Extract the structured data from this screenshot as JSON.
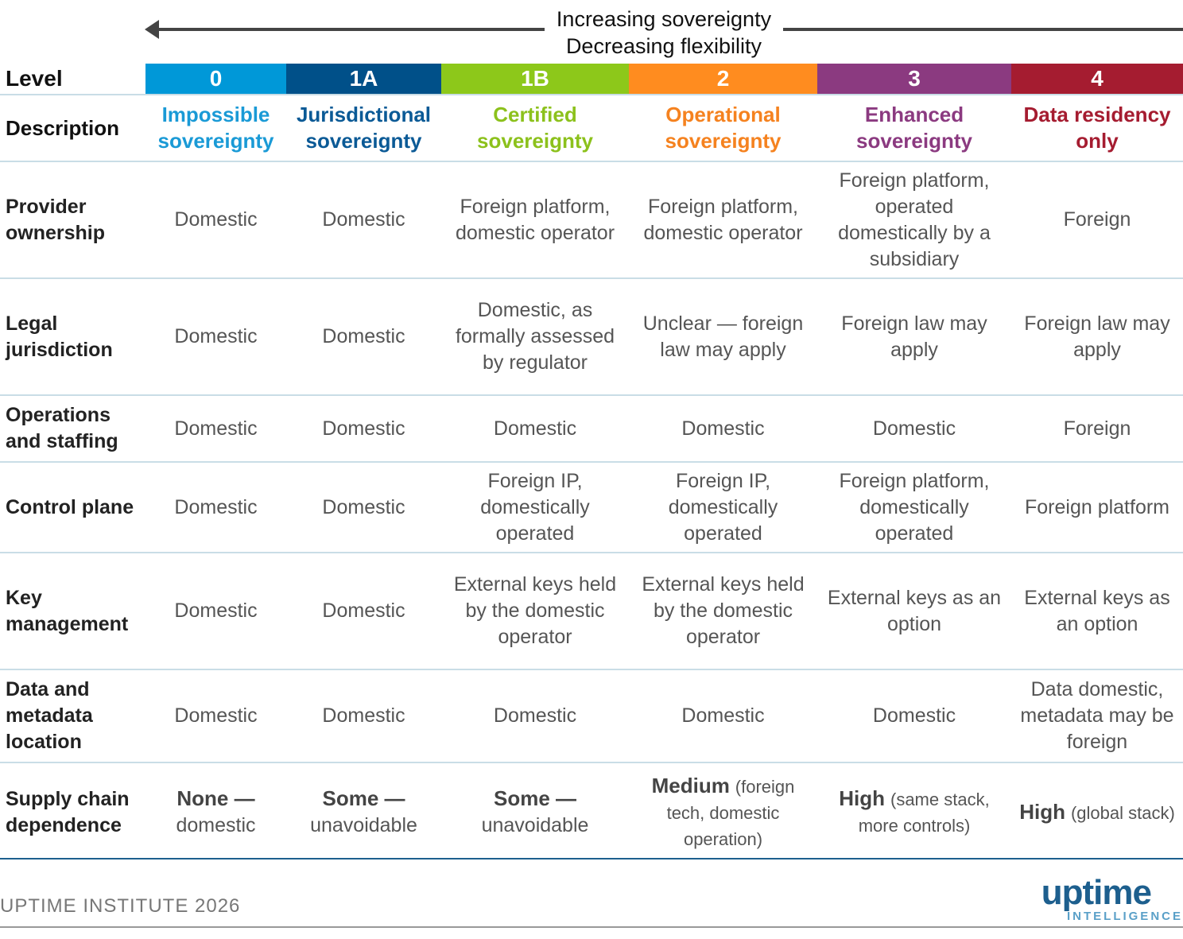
{
  "header": {
    "line1": "Increasing sovereignty",
    "line2": "Decreasing flexibility"
  },
  "table": {
    "level_label": "Level",
    "description_label": "Description",
    "levels": [
      {
        "level": "0",
        "description": "Impossible sovereignty",
        "color": "#0098d8",
        "text_color": "#1a9ad6"
      },
      {
        "level": "1A",
        "description": "Jurisdictional sovereignty",
        "color": "#005089",
        "text_color": "#0b5a96"
      },
      {
        "level": "1B",
        "description": "Certified sovereignty",
        "color": "#8dc81a",
        "text_color": "#8cc11c"
      },
      {
        "level": "2",
        "description": "Operational sovereignty",
        "color": "#ff8c1f",
        "text_color": "#f5821f"
      },
      {
        "level": "3",
        "description": "Enhanced sovereignty",
        "color": "#8b3a80",
        "text_color": "#8b3a80"
      },
      {
        "level": "4",
        "description": "Data residency only",
        "color": "#a51c30",
        "text_color": "#a51c30"
      }
    ],
    "rows": [
      {
        "label": "Provider ownership",
        "cells": [
          "Domestic",
          "Domestic",
          "Foreign platform, domestic operator",
          "Foreign platform, domestic operator",
          "Foreign platform, operated domestically by a subsidiary",
          "Foreign"
        ]
      },
      {
        "label": "Legal jurisdiction",
        "cells": [
          "Domestic",
          "Domestic",
          "Domestic, as formally assessed by regulator",
          "Unclear — foreign law may apply",
          "Foreign law may apply",
          "Foreign law may apply"
        ]
      },
      {
        "label": "Operations and staffing",
        "cells": [
          "Domestic",
          "Domestic",
          "Domestic",
          "Domestic",
          "Domestic",
          "Foreign"
        ]
      },
      {
        "label": "Control plane",
        "cells": [
          "Domestic",
          "Domestic",
          "Foreign IP, domestically operated",
          "Foreign IP, domestically operated",
          "Foreign platform, domestically operated",
          "Foreign platform"
        ]
      },
      {
        "label": "Key management",
        "cells": [
          "Domestic",
          "Domestic",
          "External keys held by the domestic operator",
          "External keys held by the domestic operator",
          "External keys as an option",
          "External keys as an option"
        ]
      },
      {
        "label": "Data and metadata location",
        "cells": [
          "Domestic",
          "Domestic",
          "Domestic",
          "Domestic",
          "Domestic",
          "Data domestic, metadata may be foreign"
        ]
      },
      {
        "label": "Supply chain dependence",
        "cells": [
          {
            "bold": "None —",
            "text": "domestic"
          },
          {
            "bold": "Some —",
            "text": "unavoidable"
          },
          {
            "bold": "Some —",
            "text": "unavoidable"
          },
          {
            "bold": "Medium",
            "text": "(foreign tech, domestic operation)"
          },
          {
            "bold": "High",
            "text": "(same stack, more controls)"
          },
          {
            "bold": "High",
            "text": "(global stack)"
          }
        ]
      }
    ]
  },
  "footer": {
    "source": "UPTIME INSTITUTE 2026",
    "logo": "uptime",
    "logo_sub": "INTELLIGENCE"
  }
}
